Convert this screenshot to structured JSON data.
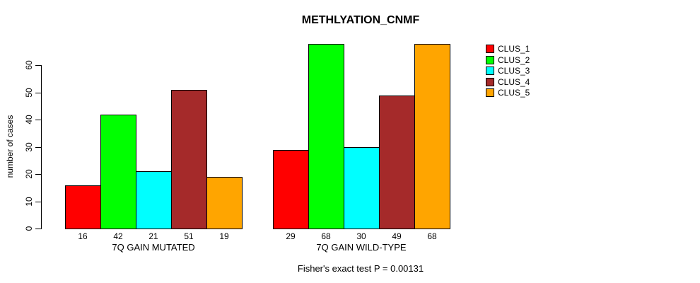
{
  "chart_data": {
    "type": "bar",
    "title": "METHLYATION_CNMF",
    "ylabel": "number of cases",
    "xlabel": "",
    "categories": [
      "7Q GAIN MUTATED",
      "7Q GAIN WILD-TYPE"
    ],
    "series": [
      {
        "name": "CLUS_1",
        "color": "#FF0000",
        "values": [
          16,
          29
        ]
      },
      {
        "name": "CLUS_2",
        "color": "#00FF00",
        "values": [
          42,
          68
        ]
      },
      {
        "name": "CLUS_3",
        "color": "#00FFFF",
        "values": [
          21,
          30
        ]
      },
      {
        "name": "CLUS_4",
        "color": "#A52A2A",
        "values": [
          51,
          49
        ]
      },
      {
        "name": "CLUS_5",
        "color": "#FFA500",
        "values": [
          19,
          68
        ]
      }
    ],
    "bar_value_labels": [
      [
        16,
        42,
        21,
        51,
        19
      ],
      [
        29,
        68,
        30,
        49,
        68
      ]
    ],
    "yticks": [
      0,
      10,
      20,
      30,
      40,
      50,
      60
    ],
    "ylim": [
      0,
      68
    ],
    "grid": false,
    "legend_position": "right-outside",
    "annotation": "Fisher's exact test P = 0.00131"
  }
}
